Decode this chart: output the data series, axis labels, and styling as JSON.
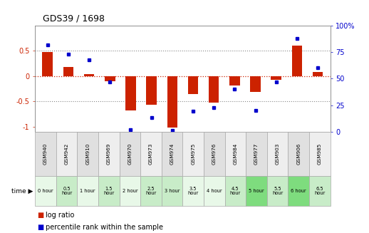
{
  "title": "GDS39 / 1698",
  "samples": [
    "GSM940",
    "GSM942",
    "GSM910",
    "GSM969",
    "GSM970",
    "GSM973",
    "GSM974",
    "GSM975",
    "GSM976",
    "GSM984",
    "GSM977",
    "GSM903",
    "GSM906",
    "GSM985"
  ],
  "time_labels": [
    "0 hour",
    "0.5\nhour",
    "1 hour",
    "1.5\nhour",
    "2 hour",
    "2.5\nhour",
    "3 hour",
    "3.5\nhour",
    "4 hour",
    "4.5\nhour",
    "5 hour",
    "5.5\nhour",
    "6 hour",
    "6.5\nhour"
  ],
  "log_ratio": [
    0.48,
    0.18,
    0.04,
    -0.1,
    -0.68,
    -0.57,
    -1.02,
    -0.35,
    -0.52,
    -0.18,
    -0.32,
    -0.08,
    0.6,
    0.08
  ],
  "percentile": [
    82,
    73,
    68,
    47,
    2,
    13,
    1,
    19,
    23,
    40,
    20,
    47,
    88,
    60
  ],
  "bar_color": "#cc2200",
  "dot_color": "#0000cc",
  "zero_line_color": "#cc2200",
  "grid_color": "#888888",
  "ylim_left": [
    -1.1,
    1.0
  ],
  "ylim_right": [
    0,
    100
  ],
  "yticks_left": [
    -1.0,
    -0.5,
    0.0,
    0.5
  ],
  "yticks_right": [
    0,
    25,
    50,
    75,
    100
  ],
  "ytick_labels_left": [
    "-1",
    "-0.5",
    "0",
    "0.5"
  ],
  "ytick_labels_right": [
    "0",
    "25",
    "50",
    "75",
    "100%"
  ],
  "hline_vals": [
    0.5,
    -0.5
  ],
  "gsm_bg_even": "#e0e0e0",
  "gsm_bg_odd": "#eeeeee",
  "time_bgs": [
    "#e8f8e8",
    "#c8ecc8",
    "#e8f8e8",
    "#c8ecc8",
    "#e8f8e8",
    "#c8ecc8",
    "#c8ecc8",
    "#e8f8e8",
    "#e8f8e8",
    "#c8ecc8",
    "#7edc7e",
    "#c8ecc8",
    "#7edc7e",
    "#c8ecc8"
  ],
  "bg_color": "#ffffff",
  "bar_width": 0.5
}
